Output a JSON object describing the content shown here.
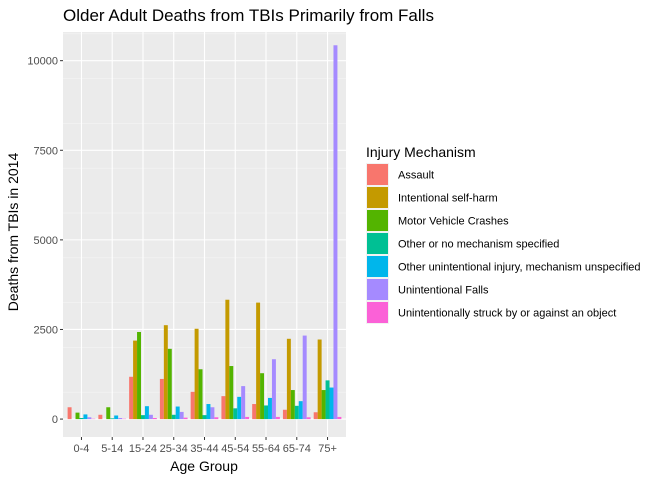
{
  "chart_data": {
    "type": "bar",
    "title": "Older Adult Deaths from TBIs Primarily from Falls",
    "xlabel": "Age Group",
    "ylabel": "Deaths from TBIs in 2014",
    "ylim": [
      -500,
      10800
    ],
    "yticks": [
      0,
      2500,
      5000,
      7500,
      10000
    ],
    "grid": true,
    "legend": {
      "title": "Injury Mechanism",
      "placement": "right"
    },
    "categories": [
      "0-4",
      "5-14",
      "15-24",
      "25-34",
      "35-44",
      "45-54",
      "55-64",
      "65-74",
      "75+"
    ],
    "series": [
      {
        "name": "Assault",
        "color": "#F8766D",
        "values": [
          330,
          120,
          1180,
          1120,
          760,
          640,
          420,
          260,
          190
        ]
      },
      {
        "name": "Intentional self-harm",
        "color": "#C49A00",
        "values": [
          0,
          0,
          2190,
          2620,
          2520,
          3330,
          3250,
          2240,
          2220
        ]
      },
      {
        "name": "Motor Vehicle Crashes",
        "color": "#53B400",
        "values": [
          180,
          330,
          2430,
          1960,
          1390,
          1480,
          1280,
          810,
          810
        ]
      },
      {
        "name": "Other or no mechanism specified",
        "color": "#00C094",
        "values": [
          30,
          20,
          110,
          120,
          110,
          300,
          380,
          370,
          1080
        ]
      },
      {
        "name": "Other unintentional injury, mechanism unspecified",
        "color": "#00B6EB",
        "values": [
          130,
          100,
          360,
          350,
          420,
          620,
          590,
          500,
          880
        ]
      },
      {
        "name": "Unintentional Falls",
        "color": "#A58AFF",
        "values": [
          50,
          30,
          120,
          200,
          330,
          920,
          1670,
          2330,
          10430
        ]
      },
      {
        "name": "Unintentionally struck by or against an object",
        "color": "#FB61D7",
        "values": [
          10,
          10,
          30,
          40,
          50,
          60,
          60,
          50,
          60
        ]
      }
    ]
  }
}
